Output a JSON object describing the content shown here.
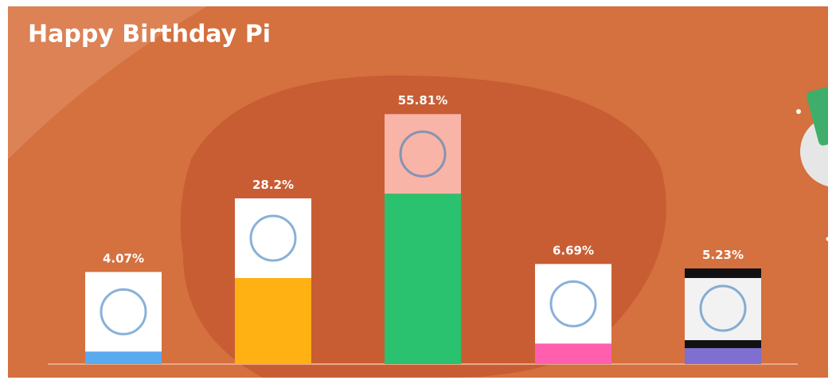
{
  "chart_data": {
    "type": "bar",
    "title": "Happy Birthday Pi",
    "categories": [
      null,
      null,
      null,
      null,
      null
    ],
    "values": [
      4.07,
      28.2,
      55.81,
      6.69,
      5.23
    ],
    "value_labels": [
      "4.07%",
      "28.2%",
      "55.81%",
      "6.69%",
      "5.23%"
    ],
    "colors": [
      "#5aaaf0",
      "#ffb012",
      "#2ac26e",
      "#ff5fae",
      "#7e6fd0"
    ],
    "ylim": [
      0,
      100
    ]
  }
}
